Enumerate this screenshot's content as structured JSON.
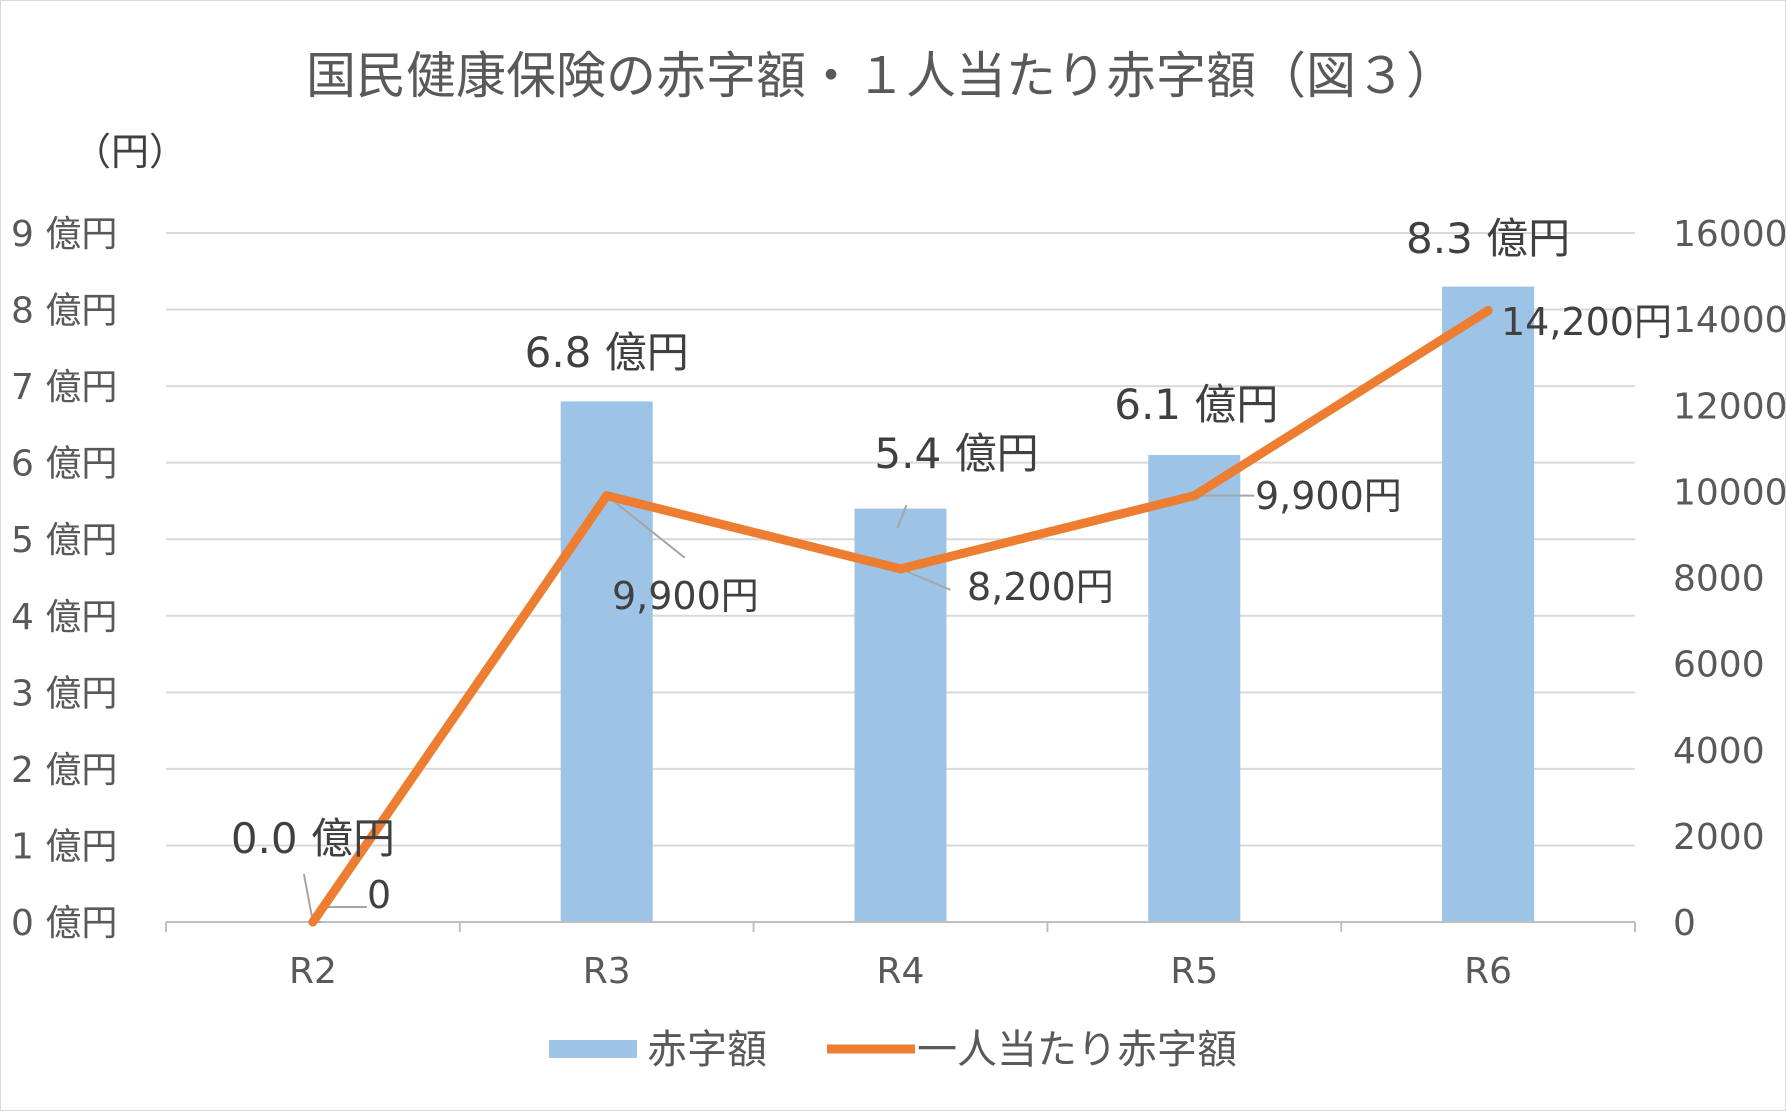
{
  "chart_data": {
    "type": "bar+line",
    "title": "国民健康保険の赤字額・１人当たり赤字額（図３）",
    "categories": [
      "R2",
      "R3",
      "R4",
      "R5",
      "R6"
    ],
    "series": [
      {
        "name": "赤字額",
        "type": "bar",
        "axis": "left",
        "color": "#9dc3e6",
        "values": [
          0.0,
          6.8,
          5.4,
          6.1,
          8.3
        ],
        "labels": [
          "0.0 億円",
          "6.8 億円",
          "5.4 億円",
          "6.1 億円",
          "8.3 億円"
        ]
      },
      {
        "name": "一人当たり赤字額",
        "type": "line",
        "axis": "right",
        "color": "#ed7d31",
        "values": [
          0,
          9900,
          8200,
          9900,
          14200
        ],
        "labels": [
          "0",
          "9,900円",
          "8,200円",
          "9,900円",
          "14,200円"
        ]
      }
    ],
    "y_left": {
      "range": [
        0,
        9
      ],
      "ticks": [
        "0 億円",
        "1 億円",
        "2 億円",
        "3 億円",
        "4 億円",
        "5 億円",
        "6 億円",
        "7 億円",
        "8 億円",
        "9 億円"
      ]
    },
    "y_right": {
      "range": [
        0,
        16000
      ],
      "ticks": [
        "0",
        "2000",
        "4000",
        "6000",
        "8000",
        "10000",
        "12000",
        "14000",
        "16000"
      ]
    },
    "unit_label": "（円）",
    "grid": true,
    "legend_position": "bottom",
    "gridline_color": "#d9d9d9"
  }
}
